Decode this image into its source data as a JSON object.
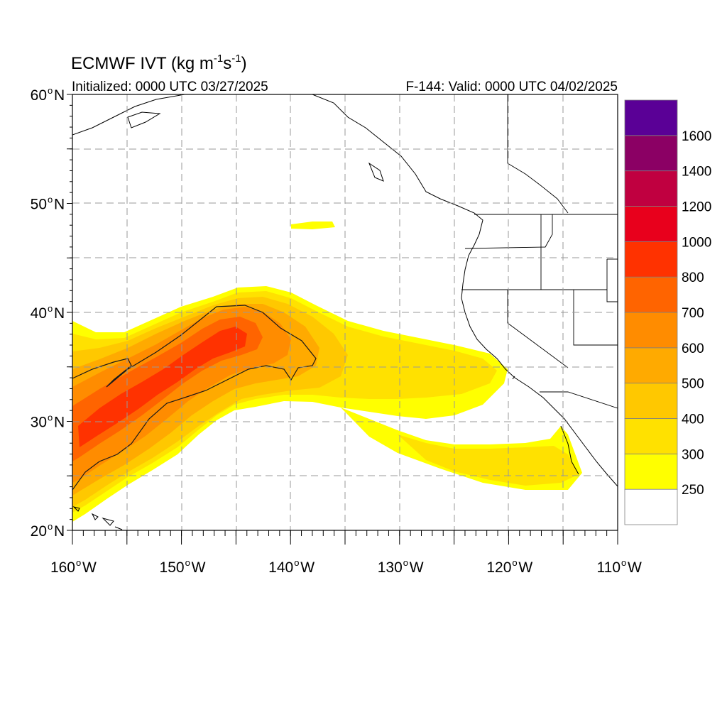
{
  "title": {
    "main": "ECMWF IVT (kg m",
    "sup1": "-1",
    "mid": "s",
    "sup2": "-1",
    "end": ")"
  },
  "subtitle_left": "Initialized: 0000 UTC 03/27/2025",
  "subtitle_right": "F-144: Valid: 0000 UTC 04/02/2025",
  "map": {
    "lon_range": [
      -160,
      -110
    ],
    "lat_range": [
      20,
      60
    ],
    "lon_ticks": [
      {
        "value": -160,
        "label": "160",
        "hem": "W"
      },
      {
        "value": -150,
        "label": "150",
        "hem": "W"
      },
      {
        "value": -140,
        "label": "140",
        "hem": "W"
      },
      {
        "value": -130,
        "label": "130",
        "hem": "W"
      },
      {
        "value": -120,
        "label": "120",
        "hem": "W"
      },
      {
        "value": -110,
        "label": "110",
        "hem": "W"
      }
    ],
    "lat_ticks": [
      {
        "value": 60,
        "label": "60",
        "hem": "N"
      },
      {
        "value": 50,
        "label": "50",
        "hem": "N"
      },
      {
        "value": 40,
        "label": "40",
        "hem": "N"
      },
      {
        "value": 30,
        "label": "30",
        "hem": "N"
      },
      {
        "value": 20,
        "label": "20",
        "hem": "N"
      }
    ],
    "degree_symbol": "o",
    "grid": "dashed gray every 5 degrees"
  },
  "colorbar": {
    "labels": [
      "250",
      "300",
      "400",
      "500",
      "600",
      "700",
      "800",
      "1000",
      "1200",
      "1400",
      "1600"
    ],
    "colors": [
      "#ffffff",
      "#ffff00",
      "#ffe100",
      "#ffc800",
      "#ffaa00",
      "#ff8c00",
      "#ff6400",
      "#ff3200",
      "#e8001c",
      "#c00040",
      "#8b0064",
      "#5a0096"
    ]
  },
  "fields": {
    "palette": {
      "c250": "#ffff00",
      "c300": "#ffe100",
      "c400": "#ffc800",
      "c500": "#ffaa00",
      "c600": "#ff8c00",
      "c700": "#ff6400",
      "c800": "#ff3200"
    }
  }
}
